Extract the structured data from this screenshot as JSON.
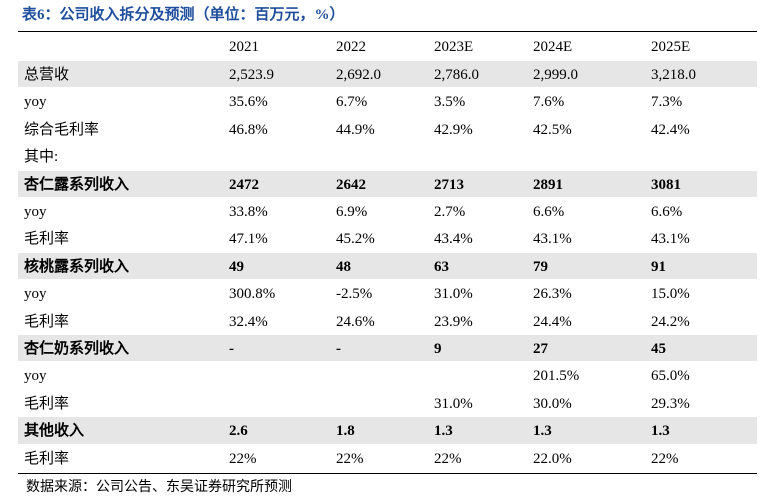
{
  "title": "表6：公司收入拆分及预测（单位：百万元，%）",
  "table": {
    "header": [
      "2021",
      "2022",
      "2023E",
      "2024E",
      "2025E"
    ],
    "rows": [
      {
        "label": "总营收",
        "cells": [
          "2,523.9",
          "2,692.0",
          "2,786.0",
          "2,999.0",
          "3,218.0"
        ],
        "shaded": true,
        "bold": false
      },
      {
        "label": "yoy",
        "cells": [
          "35.6%",
          "6.7%",
          "3.5%",
          "7.6%",
          "7.3%"
        ]
      },
      {
        "label": "综合毛利率",
        "cells": [
          "46.8%",
          "44.9%",
          "42.9%",
          "42.5%",
          "42.4%"
        ]
      },
      {
        "label": "其中:",
        "cells": [
          null,
          null,
          null,
          null,
          null
        ]
      },
      {
        "label": "杏仁露系列收入",
        "cells": [
          "2472",
          "2642",
          "2713",
          "2891",
          "3081"
        ],
        "shaded": true,
        "bold": true
      },
      {
        "label": "yoy",
        "cells": [
          "33.8%",
          "6.9%",
          "2.7%",
          "6.6%",
          "6.6%"
        ]
      },
      {
        "label": "毛利率",
        "cells": [
          "47.1%",
          "45.2%",
          "43.4%",
          "43.1%",
          "43.1%"
        ]
      },
      {
        "label": "核桃露系列收入",
        "cells": [
          "49",
          "48",
          "63",
          "79",
          "91"
        ],
        "shaded": true,
        "bold": true
      },
      {
        "label": "yoy",
        "cells": [
          "300.8%",
          "-2.5%",
          "31.0%",
          "26.3%",
          "15.0%"
        ]
      },
      {
        "label": "毛利率",
        "cells": [
          "32.4%",
          "24.6%",
          "23.9%",
          "24.4%",
          "24.2%"
        ]
      },
      {
        "label": "杏仁奶系列收入",
        "cells": [
          "-",
          "-",
          "9",
          "27",
          "45"
        ],
        "shaded": true,
        "bold": true
      },
      {
        "label": "yoy",
        "cells": [
          null,
          null,
          null,
          "201.5%",
          "65.0%"
        ]
      },
      {
        "label": "毛利率",
        "cells": [
          null,
          null,
          "31.0%",
          "30.0%",
          "29.3%"
        ]
      },
      {
        "label": "其他收入",
        "cells": [
          "2.6",
          "1.8",
          "1.3",
          "1.3",
          "1.3"
        ],
        "shaded": true,
        "bold": true
      },
      {
        "label": "毛利率",
        "cells": [
          "22%",
          "22%",
          "22%",
          "22.0%",
          "22%"
        ]
      }
    ]
  },
  "source": "数据来源：公司公告、东吴证券研究所预测"
}
